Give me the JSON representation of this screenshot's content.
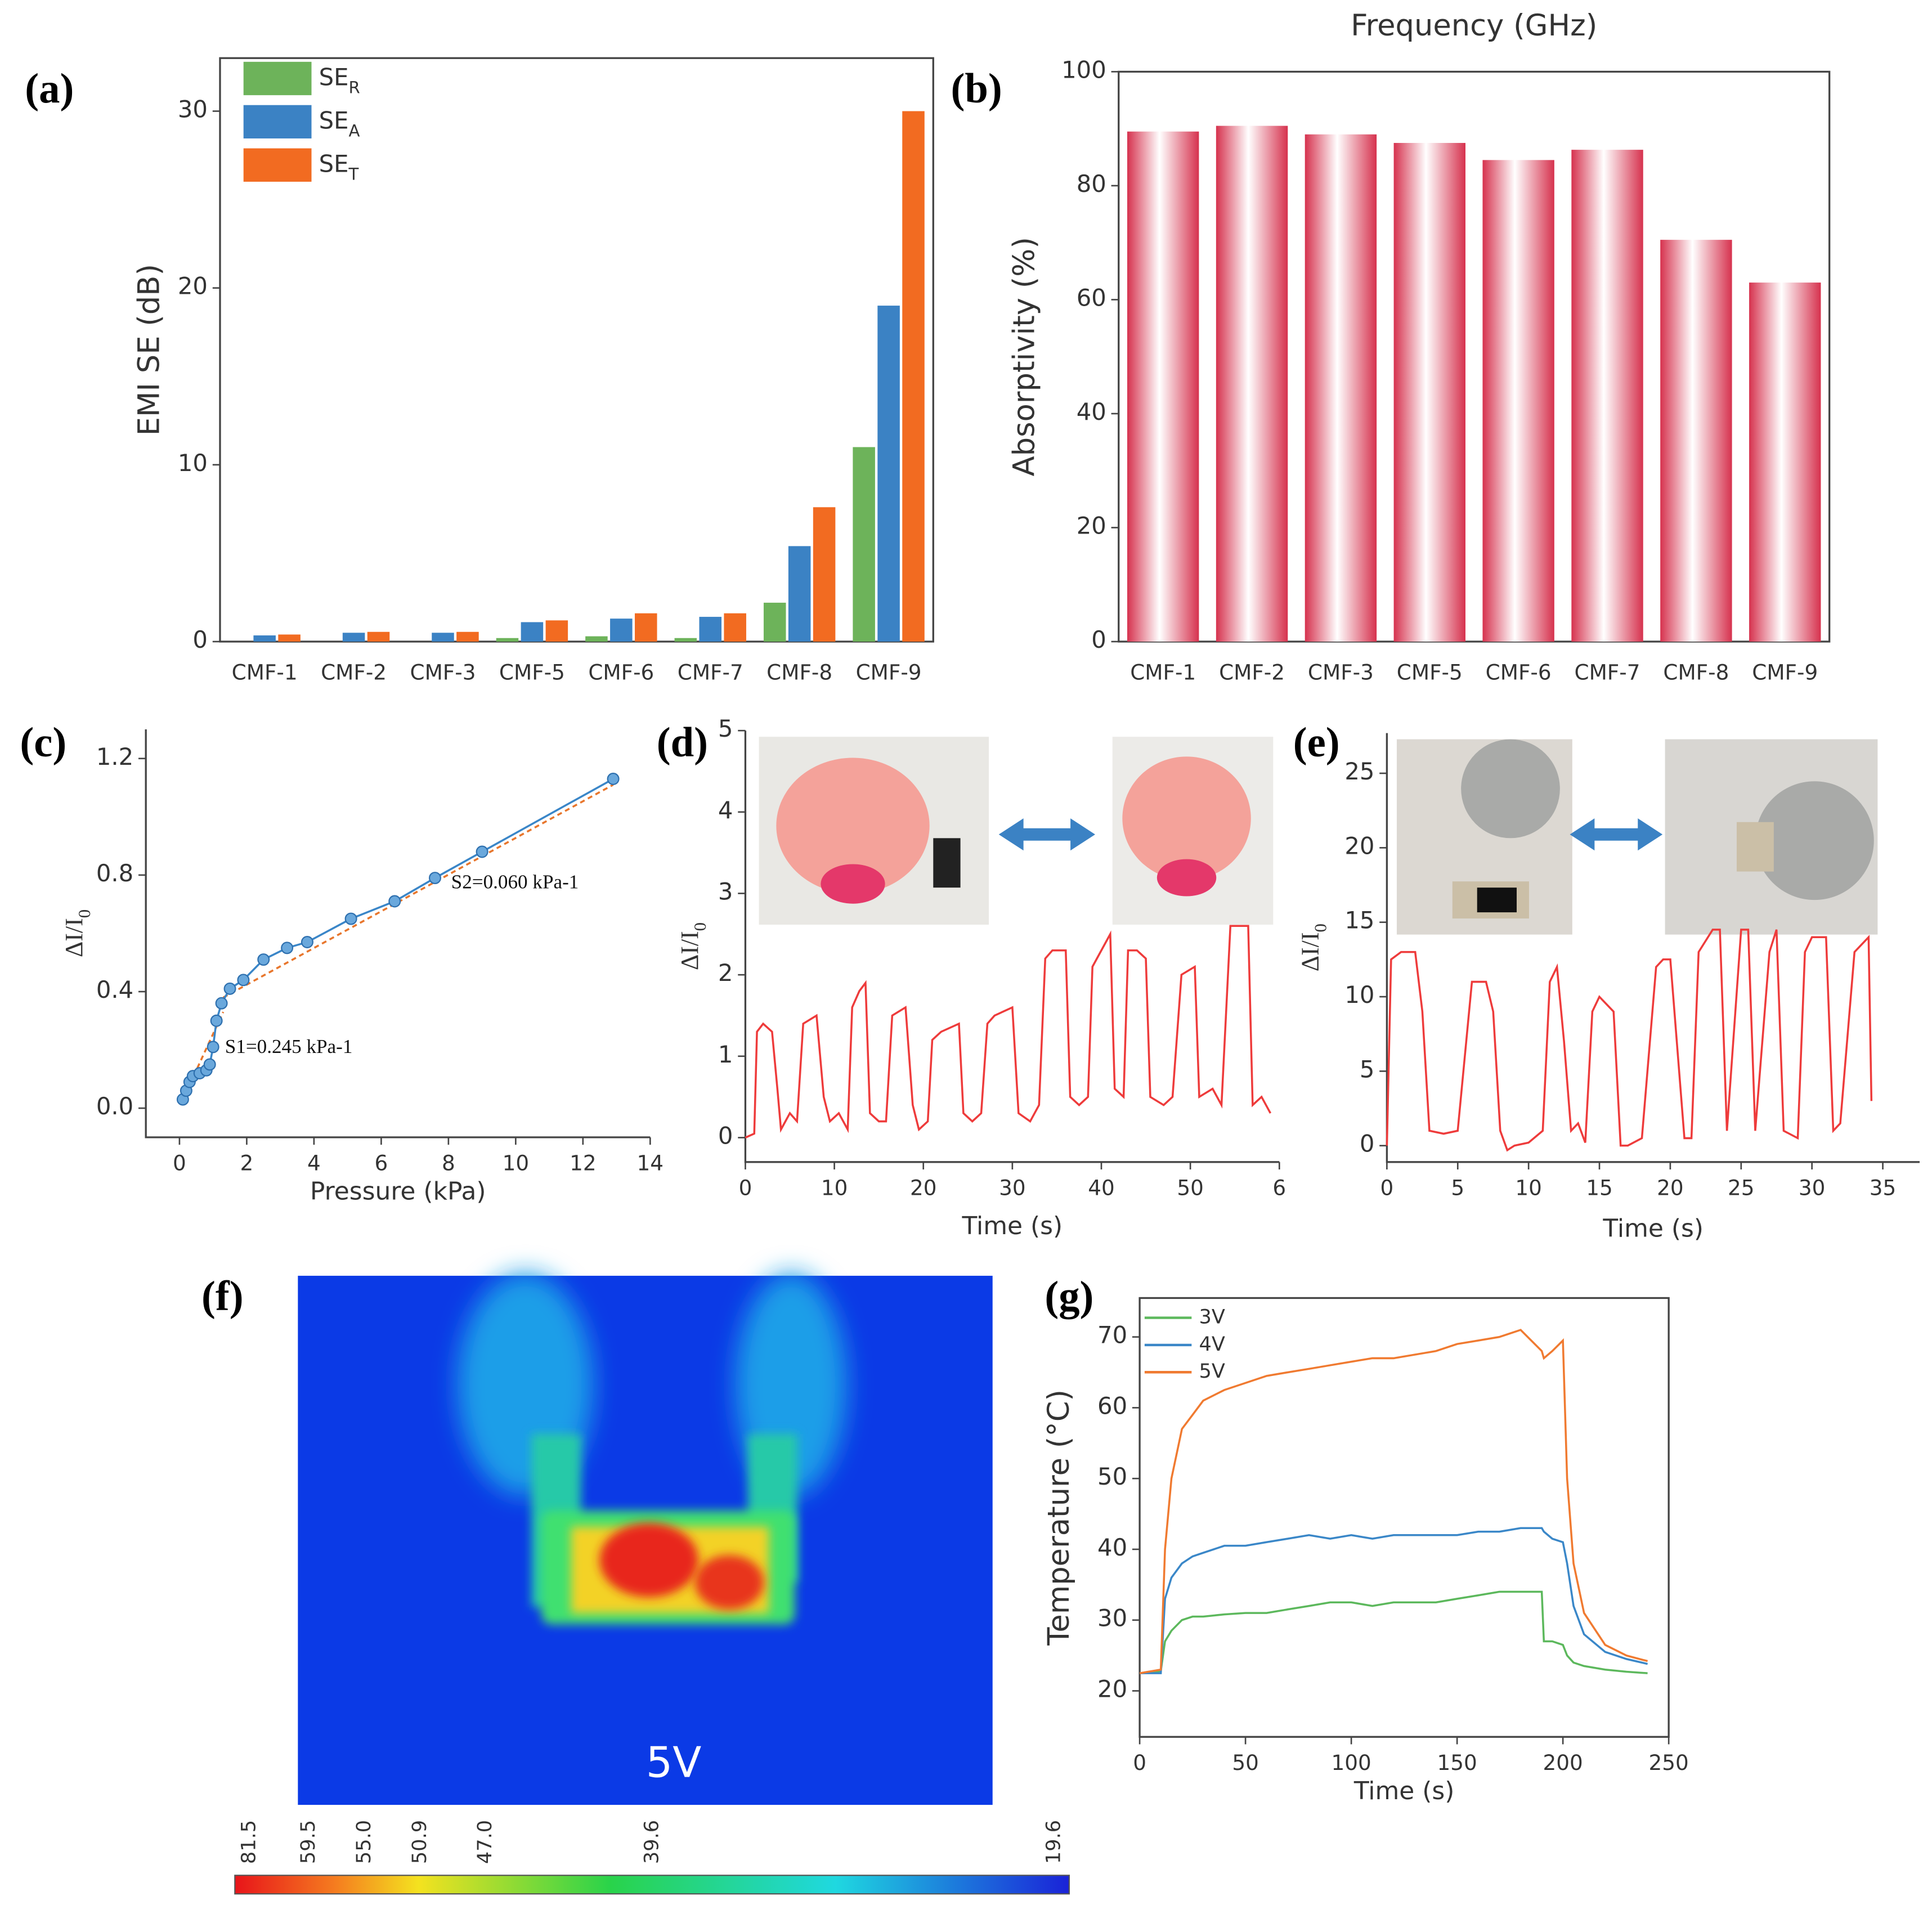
{
  "chart_data": [
    {
      "type": "bar",
      "panel": "(a)",
      "ylabel": "EMI SE (dB)",
      "categories": [
        "CMF-1",
        "CMF-2",
        "CMF-3",
        "CMF-5",
        "CMF-6",
        "CMF-7",
        "CMF-8",
        "CMF-9"
      ],
      "series": [
        {
          "name": "SER",
          "color": "#6db35a",
          "values": [
            0,
            0,
            0,
            0.2,
            0.3,
            0.2,
            2.2,
            11
          ]
        },
        {
          "name": "SEA",
          "color": "#3b82c4",
          "values": [
            0.35,
            0.5,
            0.5,
            1.1,
            1.3,
            1.4,
            5.4,
            19
          ]
        },
        {
          "name": "SET",
          "color": "#f26b21",
          "values": [
            0.4,
            0.55,
            0.55,
            1.2,
            1.6,
            1.6,
            7.6,
            30
          ]
        }
      ],
      "ylim": [
        0,
        33
      ],
      "yticks": [
        0,
        10,
        20,
        30
      ]
    },
    {
      "type": "bar",
      "panel": "(b)",
      "title": "Frequency (GHz)",
      "ylabel": "Absorptivity (%)",
      "categories": [
        "CMF-1",
        "CMF-2",
        "CMF-3",
        "CMF-5",
        "CMF-6",
        "CMF-7",
        "CMF-8",
        "CMF-9"
      ],
      "values": [
        89.5,
        90.5,
        89,
        87.5,
        84.5,
        86.3,
        70.5,
        63
      ],
      "color": "#d6324e",
      "ylim": [
        0,
        100
      ],
      "yticks": [
        0,
        20,
        40,
        60,
        80,
        100
      ]
    },
    {
      "type": "scatter",
      "panel": "(c)",
      "xlabel": "Pressure (kPa)",
      "ylabel": "ΔI/I0",
      "x": [
        0.1,
        0.2,
        0.3,
        0.4,
        0.6,
        0.8,
        0.9,
        1.0,
        1.1,
        1.25,
        1.5,
        1.9,
        2.5,
        3.2,
        3.8,
        5.1,
        6.4,
        7.6,
        9.0,
        12.9
      ],
      "values": [
        0.03,
        0.06,
        0.09,
        0.11,
        0.12,
        0.13,
        0.15,
        0.21,
        0.3,
        0.36,
        0.41,
        0.44,
        0.51,
        0.55,
        0.57,
        0.65,
        0.71,
        0.79,
        0.88,
        1.13
      ],
      "color": "#3a86c8",
      "fit_color": "#e8762c",
      "fits": [
        {
          "x": [
            0.1,
            1.3
          ],
          "values": [
            0.03,
            0.33
          ]
        },
        {
          "x": [
            1.3,
            12.9
          ],
          "values": [
            0.38,
            1.11
          ]
        }
      ],
      "annotations": [
        "S1=0.245 kPa-1",
        "S2=0.060 kPa-1"
      ],
      "xlim": [
        -1,
        14
      ],
      "xticks": [
        0,
        2,
        4,
        6,
        8,
        10,
        12,
        14
      ],
      "ylim": [
        -0.1,
        1.3
      ],
      "yticks": [
        {
          "value": 0,
          "label": "0.0"
        },
        0.4,
        0.8,
        1.2
      ]
    },
    {
      "type": "line",
      "panel": "(d)",
      "xlabel": "Time (s)",
      "ylabel": "ΔI/I0",
      "color": "#ee3b3b",
      "x": [
        0,
        1,
        1.3,
        2,
        3,
        3.6,
        4,
        5,
        5.8,
        6.5,
        8,
        8.8,
        9.5,
        10.5,
        11.5,
        12,
        12.8,
        13.5,
        14,
        15,
        15.8,
        16.5,
        18,
        18.8,
        19.5,
        20.5,
        21,
        22,
        24,
        24.5,
        25.5,
        26.5,
        27.2,
        28,
        30,
        30.7,
        32,
        33,
        33.7,
        34.5,
        36,
        36.5,
        37.5,
        38.5,
        39,
        41,
        41.5,
        42.5,
        43,
        44,
        45,
        45.5,
        47,
        48,
        49,
        50.5,
        51,
        52.5,
        53.5,
        54.5,
        56.5,
        57,
        58,
        59
      ],
      "values": [
        0,
        0.05,
        1.3,
        1.4,
        1.3,
        0.6,
        0.1,
        0.3,
        0.2,
        1.4,
        1.5,
        0.5,
        0.2,
        0.3,
        0.1,
        1.6,
        1.8,
        1.9,
        0.3,
        0.2,
        0.2,
        1.5,
        1.6,
        0.4,
        0.1,
        0.2,
        1.2,
        1.3,
        1.4,
        0.3,
        0.2,
        0.3,
        1.4,
        1.5,
        1.6,
        0.3,
        0.2,
        0.4,
        2.2,
        2.3,
        2.3,
        0.5,
        0.4,
        0.5,
        2.1,
        2.5,
        0.6,
        0.5,
        2.3,
        2.3,
        2.2,
        0.5,
        0.4,
        0.5,
        2.0,
        2.1,
        0.5,
        0.6,
        0.4,
        2.6,
        2.6,
        0.4,
        0.5,
        0.3
      ],
      "xlim": [
        0,
        60
      ],
      "xticks": [
        0,
        10,
        20,
        30,
        40,
        50,
        {
          "value": 60,
          "label": "6"
        }
      ],
      "ylim": [
        -0.3,
        5
      ],
      "yticks": [
        0,
        1,
        2,
        3,
        4,
        5
      ]
    },
    {
      "type": "line",
      "panel": "(e)",
      "xlabel": "Time (s)",
      "ylabel": "ΔI/I0",
      "color": "#ee3b3b",
      "x": [
        0,
        0.3,
        1,
        2,
        2.5,
        3,
        4,
        5,
        6,
        7,
        7.5,
        8,
        8.5,
        9,
        10,
        11,
        11.5,
        12,
        12.5,
        13,
        13.5,
        14,
        14.5,
        15,
        16,
        16.5,
        17,
        18,
        19,
        19.5,
        20,
        21,
        21.5,
        22,
        23,
        23.5,
        24,
        25,
        25.5,
        26,
        27,
        27.5,
        28,
        29,
        29.5,
        30,
        31,
        31.5,
        32,
        33,
        34,
        34.2
      ],
      "values": [
        0,
        12.5,
        13,
        13,
        9,
        1,
        0.8,
        1,
        11,
        11,
        9,
        1,
        -0.3,
        0,
        0.2,
        1,
        11,
        12,
        7,
        1,
        1.5,
        0.2,
        9,
        10,
        9,
        0,
        0,
        0.5,
        12,
        12.5,
        12.5,
        0.5,
        0.5,
        13,
        14.5,
        14.5,
        1,
        14.5,
        14.5,
        1,
        13,
        14.5,
        1,
        0.5,
        13,
        14,
        14,
        1,
        1.5,
        13,
        14,
        3
      ],
      "xlim": [
        0,
        37.6
      ],
      "xticks": [
        0,
        5,
        10,
        15,
        20,
        25,
        30,
        35
      ],
      "ylim": [
        -1.1,
        27.7
      ],
      "yticks": [
        0,
        5,
        10,
        15,
        20,
        25
      ]
    },
    {
      "type": "image",
      "panel": "(f)",
      "label": "5V",
      "colorbar_ticks": [
        81.5,
        59.5,
        {
          "value": 55,
          "label": "55.0"
        },
        50.9,
        {
          "value": 47,
          "label": "47.0"
        },
        39.6,
        19.6
      ]
    },
    {
      "type": "line",
      "panel": "(g)",
      "xlabel": "Time (s)",
      "ylabel": "Temperature (°C)",
      "x": [
        0,
        10,
        12,
        15,
        20,
        25,
        30,
        40,
        50,
        60,
        70,
        80,
        90,
        100,
        110,
        120,
        130,
        140,
        150,
        160,
        170,
        180,
        190,
        191,
        195,
        200,
        202,
        205,
        210,
        220,
        230,
        240
      ],
      "series": [
        {
          "name": "3V",
          "color": "#5cb85c",
          "values": [
            22.5,
            22.8,
            27,
            28.5,
            30,
            30.5,
            30.5,
            30.8,
            31,
            31,
            31.5,
            32,
            32.5,
            32.5,
            32,
            32.5,
            32.5,
            32.5,
            33,
            33.5,
            34,
            34,
            34,
            27,
            27,
            26.5,
            25,
            24,
            23.5,
            23,
            22.7,
            22.5
          ]
        },
        {
          "name": "4V",
          "color": "#3a87c8",
          "values": [
            22.5,
            22.5,
            33,
            36,
            38,
            39,
            39.5,
            40.5,
            40.5,
            41,
            41.5,
            42,
            41.5,
            42,
            41.5,
            42,
            42,
            42,
            42,
            42.5,
            42.5,
            43,
            43,
            42.5,
            41.5,
            41,
            38,
            32,
            28,
            25.5,
            24.5,
            23.8
          ]
        },
        {
          "name": "5V",
          "color": "#f07a30",
          "values": [
            22.5,
            23,
            40,
            50,
            57,
            59,
            61,
            62.5,
            63.5,
            64.5,
            65,
            65.5,
            66,
            66.5,
            67,
            67,
            67.5,
            68,
            69,
            69.5,
            70,
            71,
            68,
            67,
            68,
            69.5,
            50,
            38,
            31,
            26.5,
            25,
            24.2
          ]
        }
      ],
      "xlim": [
        0,
        250
      ],
      "xticks": [
        0,
        50,
        100,
        150,
        200,
        250
      ],
      "ylim": [
        13.5,
        75.5
      ],
      "yticks": [
        20,
        30,
        40,
        50,
        60,
        70
      ]
    }
  ]
}
